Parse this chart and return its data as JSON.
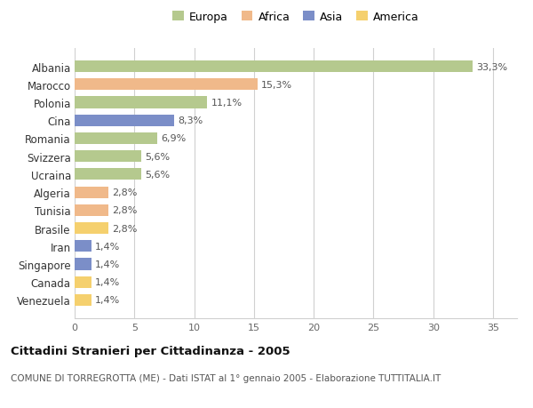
{
  "categories": [
    "Albania",
    "Marocco",
    "Polonia",
    "Cina",
    "Romania",
    "Svizzera",
    "Ucraina",
    "Algeria",
    "Tunisia",
    "Brasile",
    "Iran",
    "Singapore",
    "Canada",
    "Venezuela"
  ],
  "values": [
    33.3,
    15.3,
    11.1,
    8.3,
    6.9,
    5.6,
    5.6,
    2.8,
    2.8,
    2.8,
    1.4,
    1.4,
    1.4,
    1.4
  ],
  "labels": [
    "33,3%",
    "15,3%",
    "11,1%",
    "8,3%",
    "6,9%",
    "5,6%",
    "5,6%",
    "2,8%",
    "2,8%",
    "2,8%",
    "1,4%",
    "1,4%",
    "1,4%",
    "1,4%"
  ],
  "bar_colors": [
    "#b5c98e",
    "#f0b98a",
    "#b5c98e",
    "#7b8ec8",
    "#b5c98e",
    "#b5c98e",
    "#b5c98e",
    "#f0b98a",
    "#f0b98a",
    "#f5d06e",
    "#7b8ec8",
    "#7b8ec8",
    "#f5d06e",
    "#f5d06e"
  ],
  "legend_labels": [
    "Europa",
    "Africa",
    "Asia",
    "America"
  ],
  "legend_colors": [
    "#b5c98e",
    "#f0b98a",
    "#7b8ec8",
    "#f5d06e"
  ],
  "title": "Cittadini Stranieri per Cittadinanza - 2005",
  "subtitle": "COMUNE DI TORREGROTTA (ME) - Dati ISTAT al 1° gennaio 2005 - Elaborazione TUTTITALIA.IT",
  "xlim": [
    0,
    37
  ],
  "xticks": [
    0,
    5,
    10,
    15,
    20,
    25,
    30,
    35
  ],
  "background_color": "#ffffff",
  "grid_color": "#d0d0d0",
  "bar_height": 0.65
}
